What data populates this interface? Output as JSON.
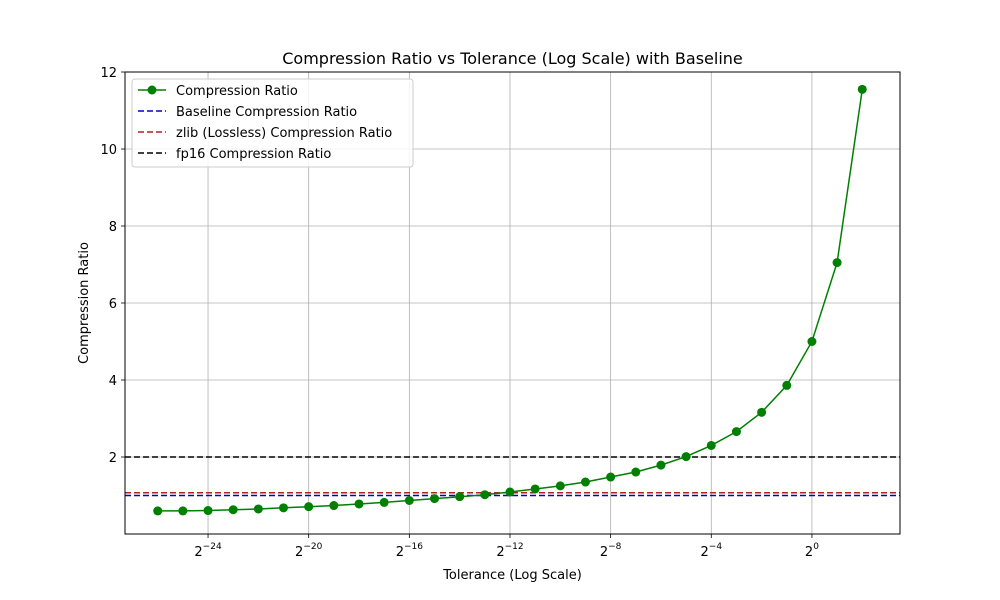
{
  "chart_data": {
    "type": "line",
    "title": "Compression Ratio vs Tolerance (Log Scale) with Baseline",
    "xlabel": "Tolerance (Log Scale)",
    "ylabel": "Compression Ratio",
    "xscale": "log2",
    "xlim_exponent": [
      -27.3,
      3.5
    ],
    "ylim": [
      0,
      12
    ],
    "grid": true,
    "legend_position": "top-left",
    "x_ticks": [
      {
        "exp": -24,
        "base": "2",
        "sup": "−24"
      },
      {
        "exp": -20,
        "base": "2",
        "sup": "−20"
      },
      {
        "exp": -16,
        "base": "2",
        "sup": "−16"
      },
      {
        "exp": -12,
        "base": "2",
        "sup": "−12"
      },
      {
        "exp": -8,
        "base": "2",
        "sup": "−8"
      },
      {
        "exp": -4,
        "base": "2",
        "sup": "−4"
      },
      {
        "exp": 0,
        "base": "2",
        "sup": "0"
      }
    ],
    "y_ticks": [
      2,
      4,
      6,
      8,
      10,
      12
    ],
    "series": [
      {
        "name": "Compression Ratio",
        "color": "#008000",
        "style": "solid-marker",
        "x_exponent": [
          -26,
          -25,
          -24,
          -23,
          -22,
          -21,
          -20,
          -19,
          -18,
          -17,
          -16,
          -15,
          -14,
          -13,
          -12,
          -11,
          -10,
          -9,
          -8,
          -7,
          -6,
          -5,
          -4,
          -3,
          -2,
          -1,
          0,
          1,
          2
        ],
        "y": [
          0.6,
          0.6,
          0.61,
          0.63,
          0.65,
          0.68,
          0.71,
          0.74,
          0.78,
          0.82,
          0.87,
          0.92,
          0.97,
          1.02,
          1.09,
          1.17,
          1.25,
          1.35,
          1.48,
          1.61,
          1.79,
          2.01,
          2.3,
          2.66,
          3.16,
          3.86,
          5.0,
          7.05,
          11.55
        ]
      },
      {
        "name": "Baseline Compression Ratio",
        "color": "#0000cc",
        "style": "dashed",
        "y_constant": 1.0
      },
      {
        "name": "zlib (Lossless) Compression Ratio",
        "color": "#b22222",
        "style": "dashed",
        "y_constant": 1.07
      },
      {
        "name": "fp16 Compression Ratio",
        "color": "#000000",
        "style": "dashed",
        "y_constant": 2.0
      }
    ]
  }
}
